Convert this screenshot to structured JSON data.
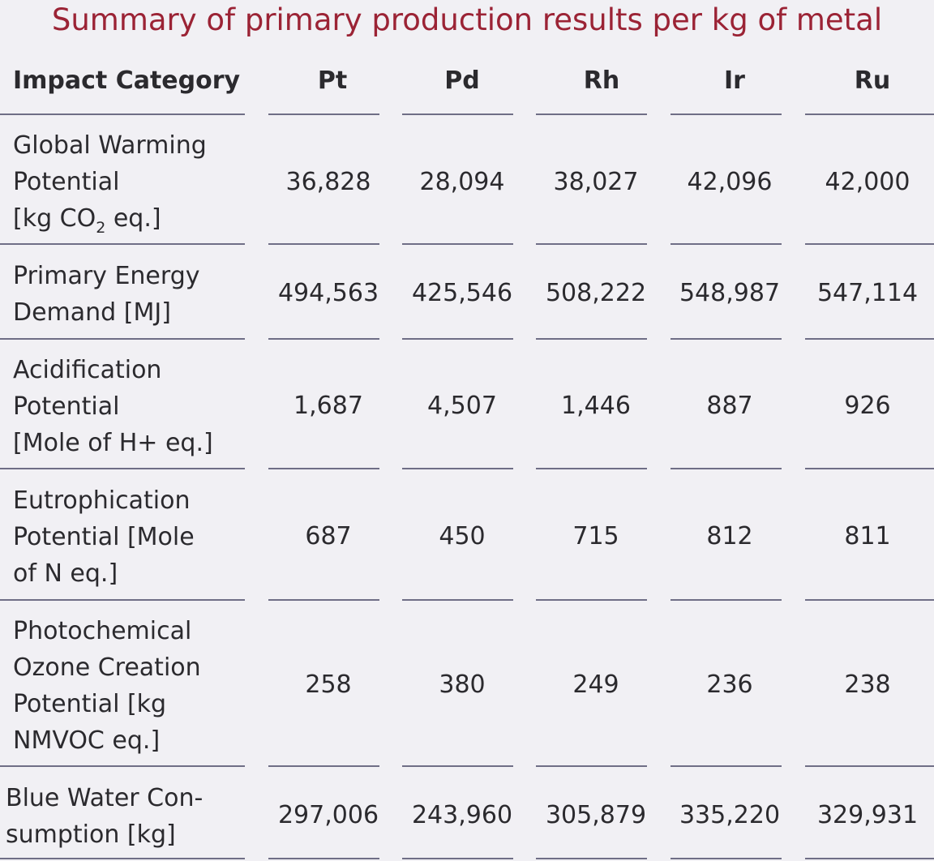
{
  "title": "Summary of primary production results per kg of metal",
  "headers": {
    "category": "Impact Category",
    "metals": [
      "Pt",
      "Pd",
      "Rh",
      "Ir",
      "Ru"
    ]
  },
  "rows": [
    {
      "label_lines": [
        "Global Warming",
        "Potential"
      ],
      "unit_pre": "[kg CO",
      "unit_sub": "2",
      "unit_post": " eq.]",
      "values": [
        "36,828",
        "28,094",
        "38,027",
        "42,096",
        "42,000"
      ]
    },
    {
      "label_lines": [
        "Primary Energy",
        "Demand [MJ]"
      ],
      "values": [
        "494,563",
        "425,546",
        "508,222",
        "548,987",
        "547,114"
      ]
    },
    {
      "label_lines": [
        "Acidification",
        "Potential",
        "[Mole of H+ eq.]"
      ],
      "values": [
        "1,687",
        "4,507",
        "1,446",
        "887",
        "926"
      ]
    },
    {
      "label_lines": [
        "Eutrophication",
        "Potential [Mole",
        "of N eq.]"
      ],
      "values": [
        "687",
        "450",
        "715",
        "812",
        "811"
      ]
    },
    {
      "label_lines": [
        "Photochemical",
        "Ozone Creation",
        "Potential [kg",
        "NMVOC eq.]"
      ],
      "values": [
        "258",
        "380",
        "249",
        "236",
        "238"
      ]
    },
    {
      "label_lines": [
        "Blue Water Con-",
        "sumption [kg]"
      ],
      "values": [
        "297,006",
        "243,960",
        "305,879",
        "335,220",
        "329,931"
      ]
    }
  ],
  "colors": {
    "title": "#9b2335",
    "text": "#2b2a2e",
    "rule": "#6f6e86",
    "background": "#f1f0f4"
  }
}
